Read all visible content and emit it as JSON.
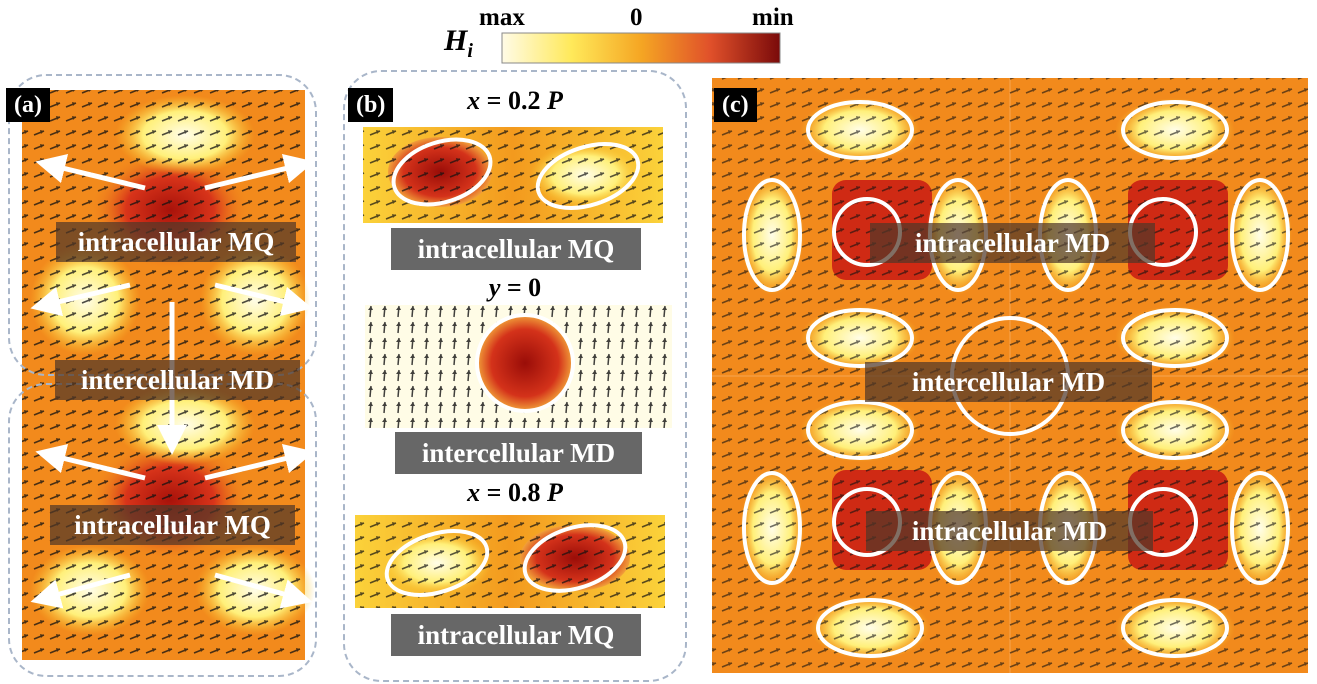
{
  "colorbar": {
    "symbol": "H",
    "subscript": "i",
    "max_label": "max",
    "zero_label": "0",
    "min_label": "min",
    "gradient": [
      "#fffbe6",
      "#ffe95a",
      "#f5a623",
      "#e0502a",
      "#7a0a0a"
    ]
  },
  "panel_a": {
    "tag": "(a)",
    "labels": [
      "intracellular MQ",
      "intercellular MD",
      "intracellular MQ"
    ]
  },
  "panel_b": {
    "tag": "(b)",
    "sections": [
      {
        "title_var": "x",
        "title_rest": " = 0.2 ",
        "title_unit": "P",
        "label": "intracellular MQ"
      },
      {
        "title_var": "y",
        "title_rest": " = 0",
        "title_unit": "",
        "label": "intercellular MD"
      },
      {
        "title_var": "x",
        "title_rest": " = 0.8 ",
        "title_unit": "P",
        "label": "intracellular MQ"
      }
    ]
  },
  "panel_c": {
    "tag": "(c)",
    "labels": [
      "intracellular MD",
      "intercellular MD",
      "intracellular MD"
    ]
  },
  "colors": {
    "background_field": "#f28a1c",
    "hot_core": "#c0220f",
    "cool_lobe": "#fff6b0",
    "arrow": "#ffffff",
    "dashed_border": "#a9b6c9"
  }
}
